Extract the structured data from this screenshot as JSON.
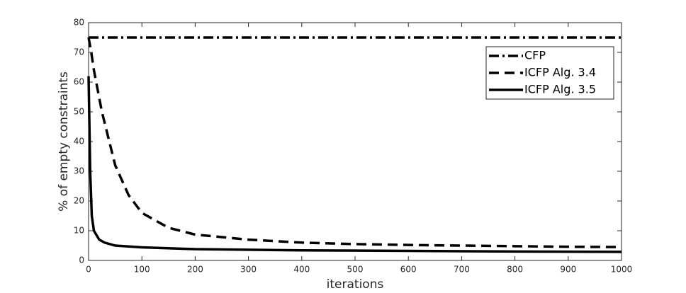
{
  "chart_data": {
    "type": "line",
    "xlabel": "iterations",
    "ylabel": "% of empty constraints",
    "xlim": [
      0,
      1000
    ],
    "ylim": [
      0,
      80
    ],
    "xticks": [
      0,
      100,
      200,
      300,
      400,
      500,
      600,
      700,
      800,
      900,
      1000
    ],
    "yticks": [
      0,
      10,
      20,
      30,
      40,
      50,
      60,
      70,
      80
    ],
    "grid": false,
    "legend": "northeast",
    "series": [
      {
        "name": "CFP",
        "color": "#000000",
        "linestyle": "dashdot",
        "x": [
          0,
          1000
        ],
        "values": [
          75,
          75
        ]
      },
      {
        "name": "ICFP Alg. 3.4",
        "color": "#000000",
        "linestyle": "dashed",
        "x": [
          0,
          5,
          10,
          25,
          50,
          75,
          100,
          150,
          200,
          300,
          400,
          500,
          600,
          700,
          800,
          900,
          1000
        ],
        "values": [
          75,
          70,
          64,
          50,
          32,
          22,
          16,
          11,
          8.7,
          7,
          6,
          5.5,
          5.2,
          5,
          4.8,
          4.6,
          4.5
        ]
      },
      {
        "name": "ICFP Alg. 3.5",
        "color": "#000000",
        "linestyle": "solid",
        "x": [
          0,
          3,
          6,
          10,
          20,
          30,
          50,
          100,
          200,
          400,
          600,
          800,
          1000
        ],
        "values": [
          62,
          30,
          15,
          10,
          7,
          6,
          5,
          4.4,
          3.8,
          3.4,
          3.2,
          3,
          2.9
        ]
      }
    ]
  }
}
